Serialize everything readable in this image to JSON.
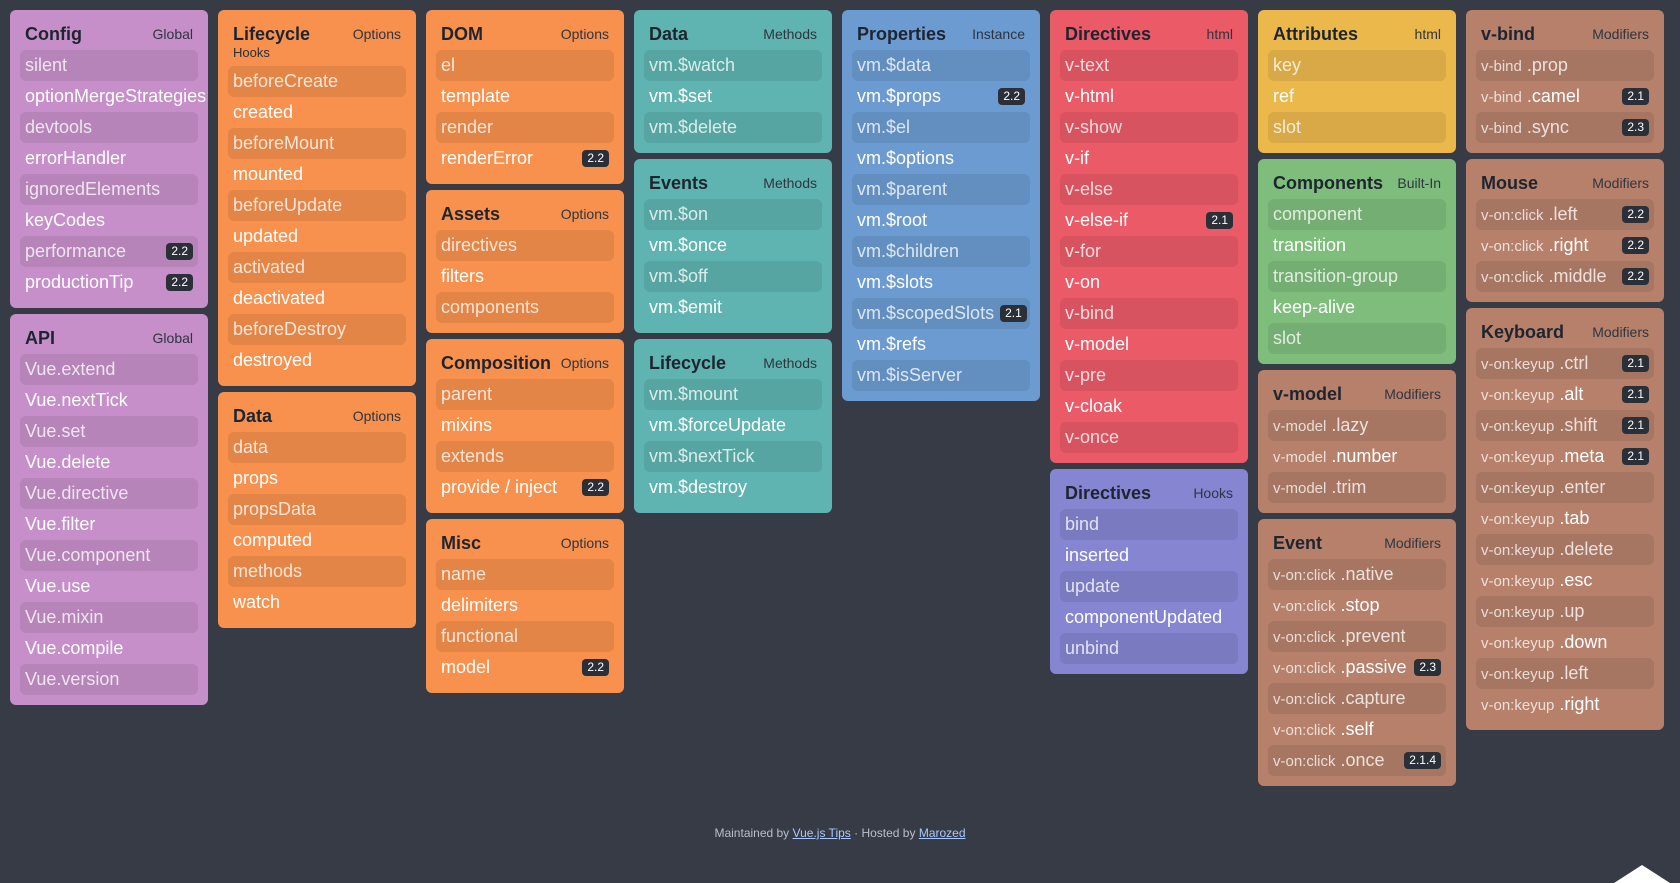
{
  "columns": [
    {
      "cards": [
        {
          "title": "Config",
          "tag": "Global",
          "color": "#c68fc9",
          "items": [
            {
              "label": "silent",
              "dim": true
            },
            {
              "label": "optionMergeStrategies"
            },
            {
              "label": "devtools",
              "dim": true
            },
            {
              "label": "errorHandler"
            },
            {
              "label": "ignoredElements",
              "dim": true
            },
            {
              "label": "keyCodes"
            },
            {
              "label": "performance",
              "dim": true,
              "badge": "2.2"
            },
            {
              "label": "productionTip",
              "badge": "2.2"
            }
          ]
        },
        {
          "title": "API",
          "tag": "Global",
          "color": "#c68fc9",
          "items": [
            {
              "label": "Vue.extend",
              "dim": true
            },
            {
              "label": "Vue.nextTick"
            },
            {
              "label": "Vue.set",
              "dim": true
            },
            {
              "label": "Vue.delete"
            },
            {
              "label": "Vue.directive",
              "dim": true
            },
            {
              "label": "Vue.filter"
            },
            {
              "label": "Vue.component",
              "dim": true
            },
            {
              "label": "Vue.use"
            },
            {
              "label": "Vue.mixin",
              "dim": true
            },
            {
              "label": "Vue.compile"
            },
            {
              "label": "Vue.version",
              "dim": true
            }
          ]
        }
      ]
    },
    {
      "cards": [
        {
          "title": "Lifecycle",
          "subtitle": "Hooks",
          "tag": "Options",
          "color": "#f7914d",
          "items": [
            {
              "label": "beforeCreate",
              "dim": true
            },
            {
              "label": "created"
            },
            {
              "label": "beforeMount",
              "dim": true
            },
            {
              "label": "mounted"
            },
            {
              "label": "beforeUpdate",
              "dim": true
            },
            {
              "label": "updated"
            },
            {
              "label": "activated",
              "dim": true
            },
            {
              "label": "deactivated"
            },
            {
              "label": "beforeDestroy",
              "dim": true
            },
            {
              "label": "destroyed"
            }
          ]
        },
        {
          "title": "Data",
          "tag": "Options",
          "color": "#f7914d",
          "items": [
            {
              "label": "data",
              "dim": true
            },
            {
              "label": "props"
            },
            {
              "label": "propsData",
              "dim": true
            },
            {
              "label": "computed"
            },
            {
              "label": "methods",
              "dim": true
            },
            {
              "label": "watch"
            }
          ]
        }
      ]
    },
    {
      "cards": [
        {
          "title": "DOM",
          "tag": "Options",
          "color": "#f7914d",
          "items": [
            {
              "label": "el",
              "dim": true
            },
            {
              "label": "template"
            },
            {
              "label": "render",
              "dim": true
            },
            {
              "label": "renderError",
              "badge": "2.2"
            }
          ]
        },
        {
          "title": "Assets",
          "tag": "Options",
          "color": "#f7914d",
          "items": [
            {
              "label": "directives",
              "dim": true
            },
            {
              "label": "filters"
            },
            {
              "label": "components",
              "dim": true
            }
          ]
        },
        {
          "title": "Composition",
          "tag": "Options",
          "color": "#f7914d",
          "items": [
            {
              "label": "parent",
              "dim": true
            },
            {
              "label": "mixins"
            },
            {
              "label": "extends",
              "dim": true
            },
            {
              "label": "provide / inject",
              "badge": "2.2"
            }
          ]
        },
        {
          "title": "Misc",
          "tag": "Options",
          "color": "#f7914d",
          "items": [
            {
              "label": "name",
              "dim": true
            },
            {
              "label": "delimiters"
            },
            {
              "label": "functional",
              "dim": true
            },
            {
              "label": "model",
              "badge": "2.2"
            }
          ]
        }
      ]
    },
    {
      "cards": [
        {
          "title": "Data",
          "tag": "Methods",
          "color": "#5fb3b0",
          "items": [
            {
              "label": "vm.$watch",
              "dim": true
            },
            {
              "label": "vm.$set"
            },
            {
              "label": "vm.$delete",
              "dim": true
            }
          ]
        },
        {
          "title": "Events",
          "tag": "Methods",
          "color": "#5fb3b0",
          "items": [
            {
              "label": "vm.$on",
              "dim": true
            },
            {
              "label": "vm.$once"
            },
            {
              "label": "vm.$off",
              "dim": true
            },
            {
              "label": "vm.$emit"
            }
          ]
        },
        {
          "title": "Lifecycle",
          "tag": "Methods",
          "color": "#5fb3b0",
          "items": [
            {
              "label": "vm.$mount",
              "dim": true
            },
            {
              "label": "vm.$forceUpdate"
            },
            {
              "label": "vm.$nextTick",
              "dim": true
            },
            {
              "label": "vm.$destroy"
            }
          ]
        }
      ]
    },
    {
      "cards": [
        {
          "title": "Properties",
          "tag": "Instance",
          "color": "#6b9bd1",
          "items": [
            {
              "label": "vm.$data",
              "dim": true
            },
            {
              "label": "vm.$props",
              "badge": "2.2"
            },
            {
              "label": "vm.$el",
              "dim": true
            },
            {
              "label": "vm.$options"
            },
            {
              "label": "vm.$parent",
              "dim": true
            },
            {
              "label": "vm.$root"
            },
            {
              "label": "vm.$children",
              "dim": true
            },
            {
              "label": "vm.$slots"
            },
            {
              "label": "vm.$scopedSlots",
              "dim": true,
              "badge": "2.1"
            },
            {
              "label": "vm.$refs"
            },
            {
              "label": "vm.$isServer",
              "dim": true
            }
          ]
        }
      ]
    },
    {
      "cards": [
        {
          "title": "Directives",
          "tag": "html",
          "color": "#ea5a67",
          "items": [
            {
              "label": "v-text",
              "dim": true
            },
            {
              "label": "v-html"
            },
            {
              "label": "v-show",
              "dim": true
            },
            {
              "label": "v-if"
            },
            {
              "label": "v-else",
              "dim": true
            },
            {
              "label": "v-else-if",
              "badge": "2.1"
            },
            {
              "label": "v-for",
              "dim": true
            },
            {
              "label": "v-on"
            },
            {
              "label": "v-bind",
              "dim": true
            },
            {
              "label": "v-model"
            },
            {
              "label": "v-pre",
              "dim": true
            },
            {
              "label": "v-cloak"
            },
            {
              "label": "v-once",
              "dim": true
            }
          ]
        },
        {
          "title": "Directives",
          "tag": "Hooks",
          "color": "#8585d2",
          "items": [
            {
              "label": "bind",
              "dim": true
            },
            {
              "label": "inserted"
            },
            {
              "label": "update",
              "dim": true
            },
            {
              "label": "componentUpdated"
            },
            {
              "label": "unbind",
              "dim": true
            }
          ]
        }
      ]
    },
    {
      "cards": [
        {
          "title": "Attributes",
          "tag": "html",
          "color": "#ebb84c",
          "items": [
            {
              "label": "key",
              "dim": true
            },
            {
              "label": "ref"
            },
            {
              "label": "slot",
              "dim": true
            }
          ]
        },
        {
          "title": "Components",
          "tag": "Built-In",
          "color": "#7fbd7c",
          "items": [
            {
              "label": "component",
              "dim": true
            },
            {
              "label": "transition"
            },
            {
              "label": "transition-group",
              "dim": true
            },
            {
              "label": "keep-alive"
            },
            {
              "label": "slot",
              "dim": true
            }
          ]
        },
        {
          "title": "v-model",
          "tag": "Modifiers",
          "color": "#b6806b",
          "items": [
            {
              "prefix": "v-model",
              "label": ".lazy",
              "dim": true
            },
            {
              "prefix": "v-model",
              "label": ".number"
            },
            {
              "prefix": "v-model",
              "label": ".trim",
              "dim": true
            }
          ]
        },
        {
          "title": "Event",
          "tag": "Modifiers",
          "color": "#b6806b",
          "items": [
            {
              "prefix": "v-on:click",
              "label": ".native",
              "dim": true
            },
            {
              "prefix": "v-on:click",
              "label": ".stop"
            },
            {
              "prefix": "v-on:click",
              "label": ".prevent",
              "dim": true
            },
            {
              "prefix": "v-on:click",
              "label": ".passive",
              "badge": "2.3"
            },
            {
              "prefix": "v-on:click",
              "label": ".capture",
              "dim": true
            },
            {
              "prefix": "v-on:click",
              "label": ".self"
            },
            {
              "prefix": "v-on:click",
              "label": ".once",
              "dim": true,
              "badge": "2.1.4"
            }
          ]
        }
      ]
    },
    {
      "cards": [
        {
          "title": "v-bind",
          "tag": "Modifiers",
          "color": "#b6806b",
          "items": [
            {
              "prefix": "v-bind",
              "label": ".prop",
              "dim": true
            },
            {
              "prefix": "v-bind",
              "label": ".camel",
              "badge": "2.1"
            },
            {
              "prefix": "v-bind",
              "label": ".sync",
              "dim": true,
              "badge": "2.3"
            }
          ]
        },
        {
          "title": "Mouse",
          "tag": "Modifiers",
          "color": "#b6806b",
          "items": [
            {
              "prefix": "v-on:click",
              "label": ".left",
              "dim": true,
              "badge": "2.2"
            },
            {
              "prefix": "v-on:click",
              "label": ".right",
              "badge": "2.2"
            },
            {
              "prefix": "v-on:click",
              "label": ".middle",
              "dim": true,
              "badge": "2.2"
            }
          ]
        },
        {
          "title": "Keyboard",
          "tag": "Modifiers",
          "color": "#b6806b",
          "items": [
            {
              "prefix": "v-on:keyup",
              "label": ".ctrl",
              "dim": true,
              "badge": "2.1"
            },
            {
              "prefix": "v-on:keyup",
              "label": ".alt",
              "badge": "2.1"
            },
            {
              "prefix": "v-on:keyup",
              "label": ".shift",
              "dim": true,
              "badge": "2.1"
            },
            {
              "prefix": "v-on:keyup",
              "label": ".meta",
              "badge": "2.1"
            },
            {
              "prefix": "v-on:keyup",
              "label": ".enter",
              "dim": true
            },
            {
              "prefix": "v-on:keyup",
              "label": ".tab"
            },
            {
              "prefix": "v-on:keyup",
              "label": ".delete",
              "dim": true
            },
            {
              "prefix": "v-on:keyup",
              "label": ".esc"
            },
            {
              "prefix": "v-on:keyup",
              "label": ".up",
              "dim": true
            },
            {
              "prefix": "v-on:keyup",
              "label": ".down"
            },
            {
              "prefix": "v-on:keyup",
              "label": ".left",
              "dim": true
            },
            {
              "prefix": "v-on:keyup",
              "label": ".right"
            }
          ]
        }
      ]
    }
  ],
  "footer": {
    "maintained_text": "Maintained by",
    "maintained_link": "Vue.js Tips",
    "hosted_text": "· Hosted by",
    "hosted_link": "Marozed"
  },
  "colors": {
    "background": "#363b45",
    "badge": "#2b2f37"
  }
}
